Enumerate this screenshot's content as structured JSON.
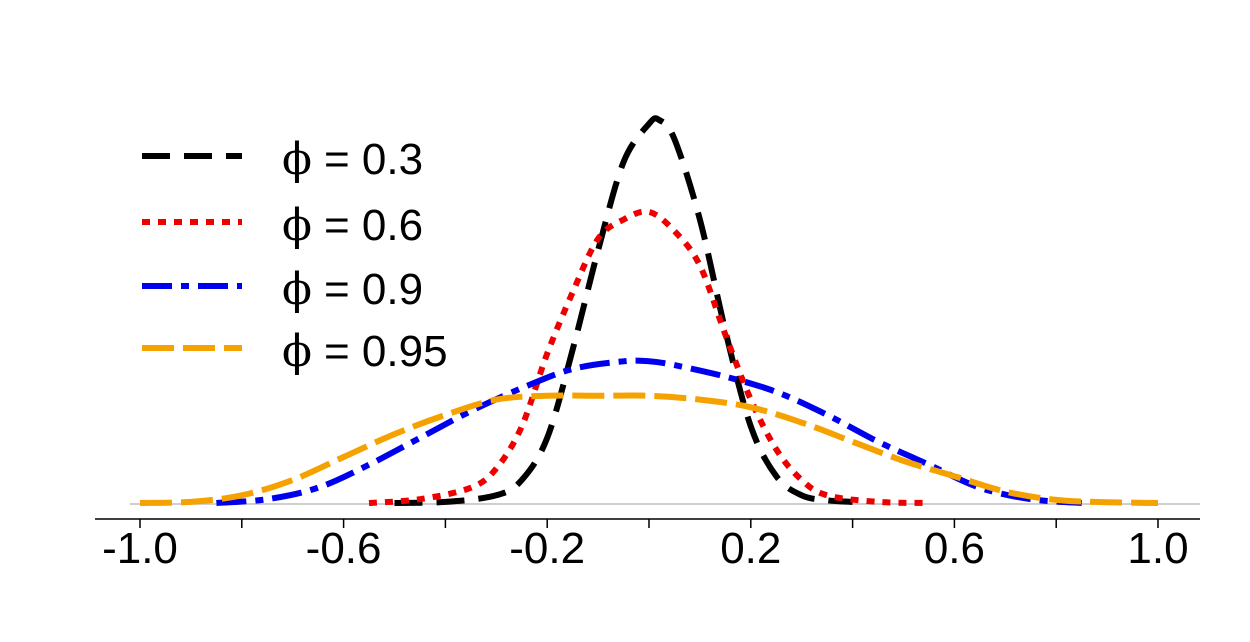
{
  "chart_data": {
    "type": "line",
    "title": "",
    "xlabel": "",
    "ylabel": "",
    "xlim": [
      -1.0,
      1.0
    ],
    "ylim": [
      0,
      1.0
    ],
    "x_ticks": [
      -1.0,
      -0.6,
      -0.2,
      0.2,
      0.6,
      1.0
    ],
    "x_tick_labels": [
      "-1.0",
      "-0.6",
      "-0.2",
      "0.2",
      "0.6",
      "1.0"
    ],
    "grid": false,
    "legend": "top-left",
    "series": [
      {
        "name": "ϕ = 0.3",
        "symbol": "ϕ",
        "label_value": "= 0.3",
        "color": "#000000",
        "dash": "28 14",
        "x": [
          -0.5,
          -0.4,
          -0.3,
          -0.25,
          -0.2,
          -0.15,
          -0.1,
          -0.05,
          0.0,
          0.02,
          0.05,
          0.1,
          0.15,
          0.2,
          0.25,
          0.3,
          0.35,
          0.4
        ],
        "y": [
          0.0,
          0.003,
          0.02,
          0.06,
          0.17,
          0.4,
          0.66,
          0.89,
          0.99,
          1.0,
          0.95,
          0.74,
          0.45,
          0.2,
          0.07,
          0.02,
          0.007,
          0.003
        ]
      },
      {
        "name": "ϕ = 0.6",
        "symbol": "ϕ",
        "label_value": "= 0.6",
        "color": "#ee0000",
        "dash": "8 8",
        "x": [
          -0.55,
          -0.45,
          -0.35,
          -0.3,
          -0.25,
          -0.2,
          -0.15,
          -0.1,
          -0.05,
          0.0,
          0.05,
          0.1,
          0.15,
          0.2,
          0.25,
          0.3,
          0.35,
          0.45,
          0.55
        ],
        "y": [
          0.0,
          0.01,
          0.04,
          0.09,
          0.2,
          0.39,
          0.55,
          0.69,
          0.74,
          0.76,
          0.71,
          0.62,
          0.44,
          0.27,
          0.14,
          0.06,
          0.02,
          0.003,
          0.0
        ]
      },
      {
        "name": "ϕ = 0.9",
        "symbol": "ϕ",
        "label_value": "= 0.9",
        "color": "#0000ee",
        "dash": "30 9 8 9",
        "x": [
          -0.85,
          -0.75,
          -0.65,
          -0.55,
          -0.45,
          -0.35,
          -0.25,
          -0.15,
          -0.05,
          0.0,
          0.05,
          0.15,
          0.25,
          0.35,
          0.45,
          0.55,
          0.65,
          0.75,
          0.85
        ],
        "y": [
          0.0,
          0.01,
          0.04,
          0.1,
          0.17,
          0.24,
          0.3,
          0.35,
          0.37,
          0.37,
          0.36,
          0.33,
          0.29,
          0.23,
          0.16,
          0.1,
          0.04,
          0.01,
          0.0
        ]
      },
      {
        "name": "ϕ = 0.95",
        "symbol": "ϕ",
        "label_value": "= 0.95",
        "color": "#f5a200",
        "dash": "32 9",
        "x": [
          -1.0,
          -0.9,
          -0.8,
          -0.7,
          -0.6,
          -0.5,
          -0.4,
          -0.3,
          -0.2,
          -0.1,
          0.0,
          0.1,
          0.2,
          0.3,
          0.4,
          0.5,
          0.6,
          0.7,
          0.8,
          0.9,
          1.0
        ],
        "y": [
          0.0,
          0.003,
          0.02,
          0.06,
          0.12,
          0.18,
          0.23,
          0.27,
          0.28,
          0.28,
          0.28,
          0.27,
          0.25,
          0.21,
          0.16,
          0.11,
          0.07,
          0.03,
          0.008,
          0.002,
          0.0
        ]
      }
    ]
  }
}
